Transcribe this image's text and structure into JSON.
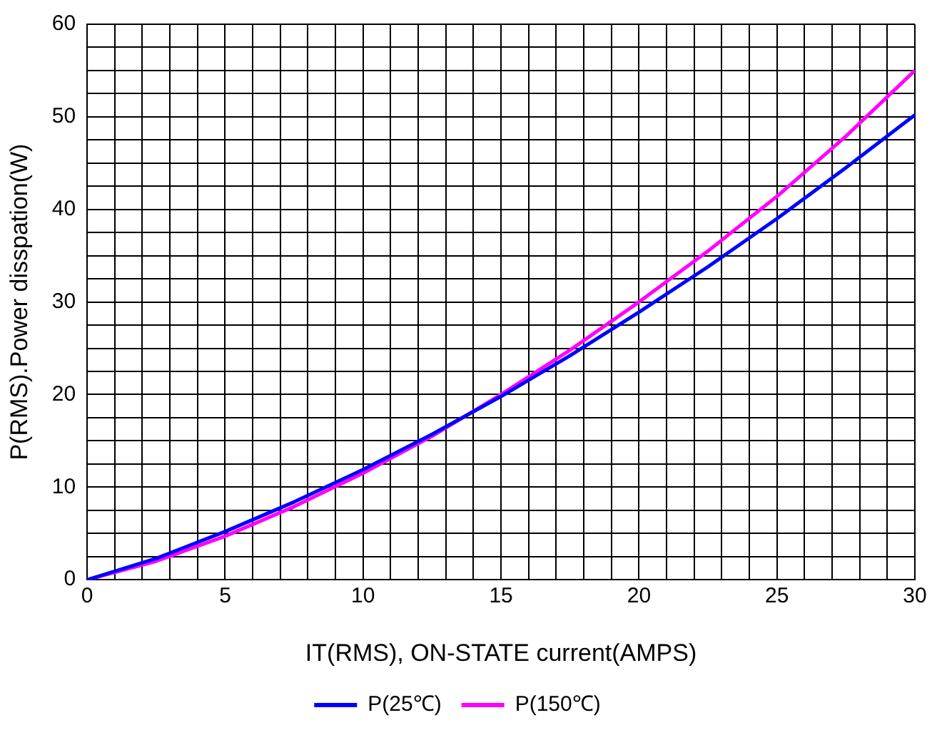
{
  "chart_data": {
    "type": "line",
    "xlabel": "IT(RMS), ON-STATE current(AMPS)",
    "ylabel": "P(RMS).Power disspation(W)",
    "x": [
      0,
      2.5,
      5,
      7.5,
      10,
      12.5,
      15,
      17.5,
      20,
      22.5,
      25,
      27.5,
      30
    ],
    "series": [
      {
        "name": "P(25℃)",
        "color": "#0000ff",
        "values": [
          0,
          2.3,
          5.2,
          8.4,
          11.9,
          15.7,
          19.8,
          24.2,
          28.9,
          33.8,
          39,
          44.5,
          50.2
        ]
      },
      {
        "name": "P(150℃)",
        "color": "#ff00ff",
        "values": [
          0,
          2.0,
          4.7,
          7.9,
          11.5,
          15.5,
          20.0,
          24.8,
          30.0,
          35.5,
          41.4,
          47.9,
          55
        ]
      }
    ],
    "xlim": [
      0,
      30
    ],
    "ylim": [
      0,
      60
    ],
    "xticks": [
      0,
      {
        "value": 1,
        "label": null
      },
      {
        "value": 2,
        "label": null
      },
      {
        "value": 3,
        "label": null
      },
      {
        "value": 4,
        "label": null
      },
      5,
      {
        "value": 6,
        "label": null
      },
      {
        "value": 7,
        "label": null
      },
      {
        "value": 8,
        "label": null
      },
      {
        "value": 9,
        "label": null
      },
      10,
      {
        "value": 11,
        "label": null
      },
      {
        "value": 12,
        "label": null
      },
      {
        "value": 13,
        "label": null
      },
      {
        "value": 14,
        "label": null
      },
      15,
      {
        "value": 16,
        "label": null
      },
      {
        "value": 17,
        "label": null
      },
      {
        "value": 18,
        "label": null
      },
      {
        "value": 19,
        "label": null
      },
      20,
      {
        "value": 21,
        "label": null
      },
      {
        "value": 22,
        "label": null
      },
      {
        "value": 23,
        "label": null
      },
      {
        "value": 24,
        "label": null
      },
      25,
      {
        "value": 26,
        "label": null
      },
      {
        "value": 27,
        "label": null
      },
      {
        "value": 28,
        "label": null
      },
      {
        "value": 29,
        "label": null
      },
      30
    ],
    "yticks": [
      0,
      {
        "value": 2.5,
        "label": null
      },
      {
        "value": 5,
        "label": null
      },
      {
        "value": 7.5,
        "label": null
      },
      10,
      {
        "value": 12.5,
        "label": null
      },
      {
        "value": 15,
        "label": null
      },
      {
        "value": 17.5,
        "label": null
      },
      20,
      {
        "value": 22.5,
        "label": null
      },
      {
        "value": 25,
        "label": null
      },
      {
        "value": 27.5,
        "label": null
      },
      30,
      {
        "value": 32.5,
        "label": null
      },
      {
        "value": 35,
        "label": null
      },
      {
        "value": 37.5,
        "label": null
      },
      40,
      {
        "value": 42.5,
        "label": null
      },
      {
        "value": 45,
        "label": null
      },
      {
        "value": 47.5,
        "label": null
      },
      50,
      {
        "value": 52.5,
        "label": null
      },
      {
        "value": 55,
        "label": null
      },
      {
        "value": 57.5,
        "label": null
      },
      60
    ],
    "grid": true,
    "legend": "bottom",
    "marker": "none",
    "line_style": "solid"
  }
}
